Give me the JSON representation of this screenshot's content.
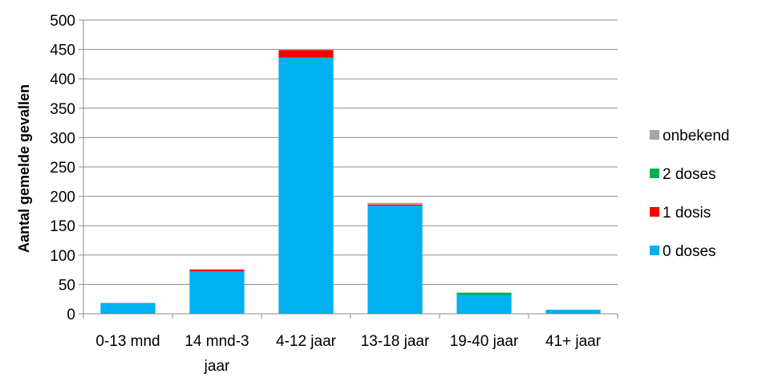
{
  "chart_data": {
    "type": "bar",
    "stacked": true,
    "ylabel": "Aantal gemelde gevallen",
    "ylim": [
      0,
      500
    ],
    "yticks": [
      0,
      50,
      100,
      150,
      200,
      250,
      300,
      350,
      400,
      450,
      500
    ],
    "grid": true,
    "legend_position": "right",
    "categories": [
      [
        "0-13 mnd"
      ],
      [
        "14 mnd-3",
        "jaar"
      ],
      [
        "4-12 jaar"
      ],
      [
        "13-18 jaar"
      ],
      [
        "19-40 jaar"
      ],
      [
        "41+ jaar"
      ]
    ],
    "series": [
      {
        "name": "0 doses",
        "color": "#00B0F0",
        "values": [
          18,
          72,
          436,
          184,
          32,
          7
        ]
      },
      {
        "name": "1 dosis",
        "color": "#FF0000",
        "values": [
          0,
          3,
          13,
          2,
          0,
          0
        ]
      },
      {
        "name": "2 doses",
        "color": "#00B050",
        "values": [
          0,
          0,
          0,
          0,
          4,
          0
        ]
      },
      {
        "name": "onbekend",
        "color": "#A6A6A6",
        "values": [
          1,
          1,
          1,
          3,
          0,
          0
        ]
      }
    ]
  }
}
